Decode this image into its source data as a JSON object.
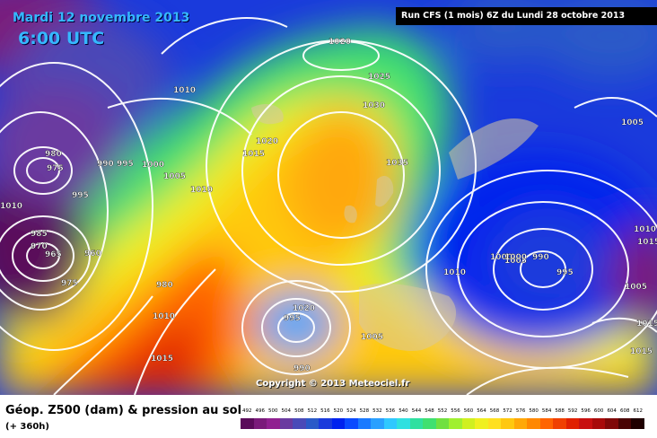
{
  "header": {
    "date": "Mardi 12 novembre 2013",
    "time": "6:00 UTC",
    "run": "Run CFS (1 mois) 6Z du Lundi 28 octobre 2013"
  },
  "map": {
    "copyright": "Copyright © 2013 Meteociel.fr",
    "isobar_labels": [
      "1020",
      "1025",
      "1030",
      "1035",
      "1010",
      "1020",
      "1015",
      "980",
      "975",
      "990",
      "995",
      "1000",
      "1005",
      "1010",
      "995",
      "985",
      "970",
      "965",
      "960",
      "975",
      "980",
      "1010",
      "1015",
      "1020",
      "995",
      "990",
      "1000",
      "1005",
      "1010",
      "1005",
      "1000",
      "990",
      "995",
      "1005",
      "1010",
      "1015",
      "1015",
      "1005",
      "1010",
      "1015"
    ]
  },
  "legend": {
    "parameter": "Géop. Z500 (dam) & pression au sol",
    "lead_time": "(+ 360h)",
    "scale_values": [
      "492",
      "496",
      "500",
      "504",
      "508",
      "512",
      "516",
      "520",
      "524",
      "528",
      "532",
      "536",
      "540",
      "544",
      "548",
      "552",
      "556",
      "560",
      "564",
      "568",
      "572",
      "576",
      "580",
      "584",
      "588",
      "592",
      "596",
      "600",
      "604",
      "608",
      "612"
    ],
    "scale_colors": [
      "#5a0a5a",
      "#7a1a7a",
      "#902090",
      "#6a3aa0",
      "#4a4ab8",
      "#2a5ac8",
      "#1a3adc",
      "#0022ee",
      "#0a4aff",
      "#1a7aff",
      "#2aa0ff",
      "#30c8ff",
      "#30e0e0",
      "#30e0a0",
      "#40e070",
      "#70e040",
      "#a0f030",
      "#d0f020",
      "#f0f020",
      "#ffe020",
      "#ffc810",
      "#ffa808",
      "#ff8800",
      "#ff6400",
      "#f04000",
      "#e02000",
      "#c81010",
      "#a80a0a",
      "#800808",
      "#4a0404",
      "#200000"
    ]
  }
}
